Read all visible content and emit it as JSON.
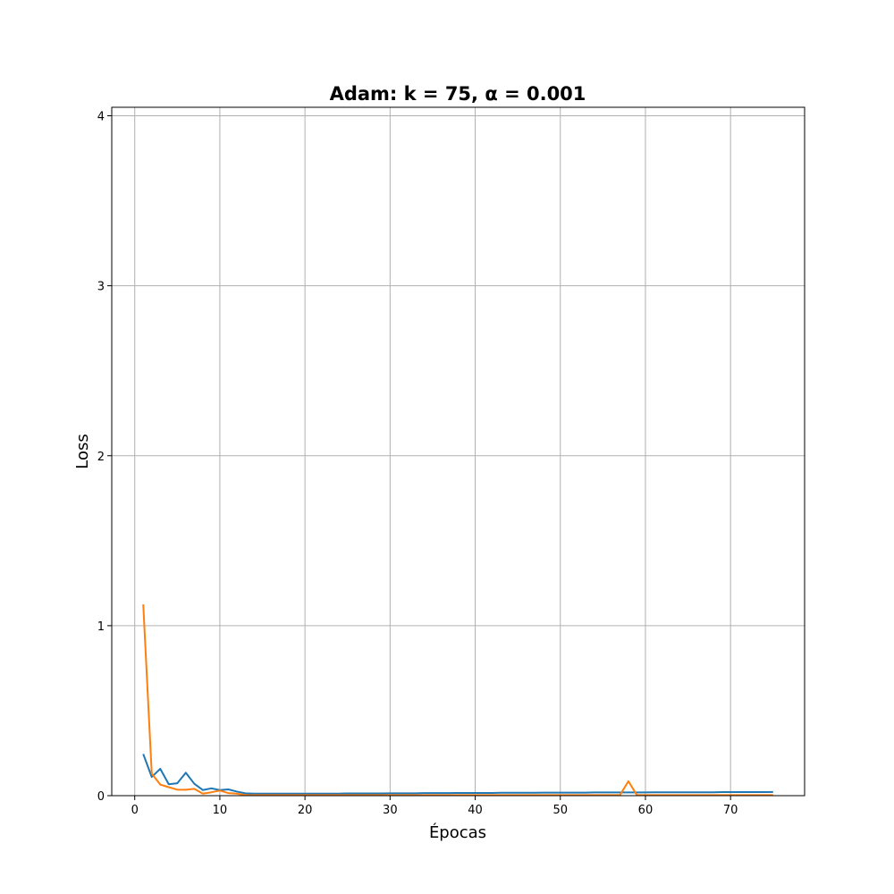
{
  "chart_data": {
    "type": "line",
    "title": "Adam: k = 75, α = 0.001",
    "xlabel": "Épocas",
    "ylabel": "Loss",
    "xlim": [
      -2.7,
      78.7
    ],
    "ylim": [
      0,
      4.05
    ],
    "xticks": [
      0,
      10,
      20,
      30,
      40,
      50,
      60,
      70
    ],
    "yticks": [
      0,
      1,
      2,
      3,
      4
    ],
    "grid": true,
    "series": [
      {
        "color": "#1f77b4",
        "x": [
          1,
          2,
          3,
          4,
          5,
          6,
          7,
          8,
          9,
          10,
          11,
          12,
          13,
          14,
          15,
          16,
          17,
          18,
          19,
          20,
          21,
          22,
          23,
          24,
          25,
          26,
          27,
          28,
          29,
          30,
          31,
          32,
          33,
          34,
          35,
          36,
          37,
          38,
          39,
          40,
          41,
          42,
          43,
          44,
          45,
          46,
          47,
          48,
          49,
          50,
          51,
          52,
          53,
          54,
          55,
          56,
          57,
          58,
          59,
          60,
          61,
          62,
          63,
          64,
          65,
          66,
          67,
          68,
          69,
          70,
          71,
          72,
          73,
          74,
          75
        ],
        "values": [
          0.245,
          0.11,
          0.158,
          0.067,
          0.073,
          0.135,
          0.07,
          0.033,
          0.043,
          0.033,
          0.037,
          0.024,
          0.014,
          0.012,
          0.012,
          0.012,
          0.012,
          0.012,
          0.012,
          0.012,
          0.012,
          0.012,
          0.012,
          0.012,
          0.013,
          0.013,
          0.013,
          0.013,
          0.013,
          0.014,
          0.014,
          0.014,
          0.014,
          0.015,
          0.015,
          0.015,
          0.015,
          0.016,
          0.016,
          0.016,
          0.016,
          0.016,
          0.017,
          0.017,
          0.017,
          0.017,
          0.017,
          0.018,
          0.018,
          0.018,
          0.018,
          0.018,
          0.018,
          0.019,
          0.019,
          0.019,
          0.019,
          0.019,
          0.019,
          0.019,
          0.02,
          0.02,
          0.02,
          0.02,
          0.02,
          0.02,
          0.02,
          0.02,
          0.021,
          0.021,
          0.021,
          0.021,
          0.021,
          0.021,
          0.022
        ]
      },
      {
        "color": "#ff7f0e",
        "x": [
          1,
          2,
          3,
          4,
          5,
          6,
          7,
          8,
          9,
          10,
          11,
          12,
          13,
          14,
          15,
          16,
          17,
          18,
          19,
          20,
          21,
          22,
          23,
          24,
          25,
          26,
          27,
          28,
          29,
          30,
          31,
          32,
          33,
          34,
          35,
          36,
          37,
          38,
          39,
          40,
          41,
          42,
          43,
          44,
          45,
          46,
          47,
          48,
          49,
          50,
          51,
          52,
          53,
          54,
          55,
          56,
          57,
          58,
          59,
          60,
          61,
          62,
          63,
          64,
          65,
          66,
          67,
          68,
          69,
          70,
          71,
          72,
          73,
          74,
          75
        ],
        "values": [
          1.125,
          0.13,
          0.065,
          0.05,
          0.035,
          0.035,
          0.04,
          0.012,
          0.02,
          0.03,
          0.015,
          0.012,
          0.004,
          0.003,
          0.003,
          0.003,
          0.003,
          0.003,
          0.003,
          0.003,
          0.003,
          0.003,
          0.003,
          0.003,
          0.003,
          0.003,
          0.003,
          0.003,
          0.003,
          0.003,
          0.003,
          0.003,
          0.003,
          0.003,
          0.003,
          0.003,
          0.003,
          0.003,
          0.003,
          0.003,
          0.003,
          0.003,
          0.003,
          0.003,
          0.003,
          0.003,
          0.003,
          0.003,
          0.003,
          0.003,
          0.003,
          0.003,
          0.003,
          0.003,
          0.003,
          0.003,
          0.003,
          0.085,
          0.003,
          0.003,
          0.003,
          0.003,
          0.003,
          0.003,
          0.003,
          0.003,
          0.003,
          0.003,
          0.003,
          0.003,
          0.003,
          0.003,
          0.003,
          0.003,
          0.003
        ]
      }
    ]
  }
}
